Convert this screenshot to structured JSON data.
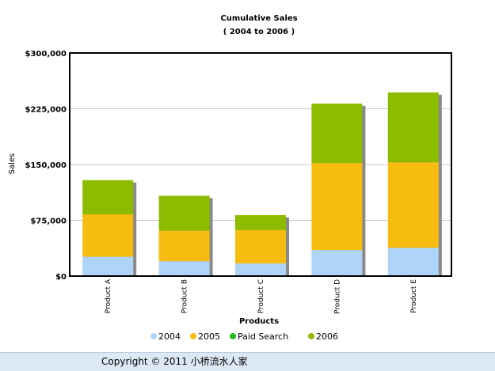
{
  "chart_data": {
    "type": "bar",
    "stacked": true,
    "title": "Cumulative Sales",
    "subtitle": "( 2004 to 2006 )",
    "xlabel": "Products",
    "ylabel": "Sales",
    "categories": [
      "Product A",
      "Product B",
      "Product C",
      "Product D",
      "Product E"
    ],
    "series": [
      {
        "name": "2004",
        "color": "#aed4f7",
        "values": [
          26000,
          20000,
          17000,
          35000,
          38000
        ]
      },
      {
        "name": "2005",
        "color": "#f7bc10",
        "values": [
          57000,
          41000,
          45000,
          117000,
          115000
        ]
      },
      {
        "name": "Paid Search",
        "color": "#22bb22",
        "values": [
          0,
          0,
          0,
          0,
          0
        ]
      },
      {
        "name": "2006",
        "color": "#8cbb00",
        "values": [
          46000,
          47000,
          20000,
          80000,
          94000
        ]
      }
    ],
    "ylim": [
      0,
      300000
    ],
    "yticks": [
      "$0",
      "$75,000",
      "$150,000",
      "$225,000",
      "$300,000"
    ],
    "ytick_values": [
      0,
      75000,
      150000,
      225000,
      300000
    ],
    "grid": true,
    "legend_position": "bottom"
  },
  "footer": {
    "copyright": "Copyright © 2011 小桥流水人家"
  }
}
